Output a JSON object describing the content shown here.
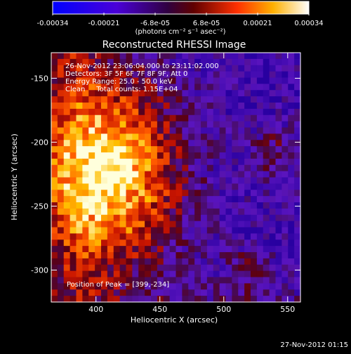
{
  "colorbar": {
    "ticks": [
      "-0.00034",
      "-0.00021",
      "-6.8e-05",
      "6.8e-05",
      "0.00021",
      "0.00034"
    ],
    "unit_label": "(photons cm⁻² s⁻¹ asec⁻²)",
    "range": [
      -0.00034,
      0.00034
    ]
  },
  "timestamp": "27-Nov-2012 01:15",
  "chart_data": {
    "type": "heatmap",
    "title": "Reconstructed RHESSI Image",
    "xlabel": "Heliocentric X (arcsec)",
    "ylabel": "Heliocentric Y (arcsec)",
    "xlim": [
      365,
      560
    ],
    "ylim": [
      -325,
      -130
    ],
    "x_ticks": [
      400,
      450,
      500,
      550
    ],
    "y_ticks": [
      -150,
      -200,
      -250,
      -300
    ],
    "grid": false,
    "annotations": [
      "26-Nov-2012 23:06:04.000 to 23:11:02.000",
      "Detectors: 3F 5F 6F 7F 8F 9F, Att 0",
      "Energy Range: 25.0 - 50.0 keV",
      "Clean     Total counts: 1.15E+04"
    ],
    "peak_label": "Position of Peak = [399,-234]",
    "peak": [
      399,
      -234
    ],
    "bright_region": {
      "center": [
        410,
        -225
      ],
      "sigma_x": 40,
      "sigma_y": 55
    },
    "cells": 40
  }
}
